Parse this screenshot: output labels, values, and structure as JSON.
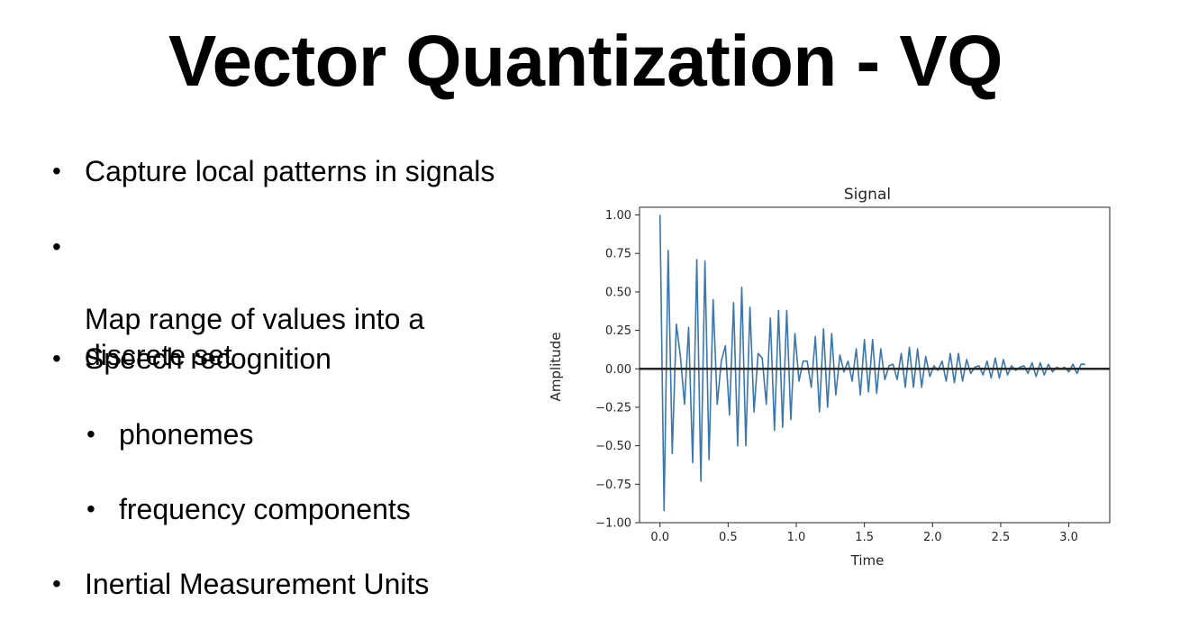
{
  "slide": {
    "title": "Vector Quantization - VQ",
    "bullets": [
      {
        "text": "Capture local patterns in signals",
        "level": 1
      },
      {
        "text": "Map range of values into a\ndiscrete set",
        "level": 1
      },
      {
        "text": "Speech recognition",
        "level": 1
      },
      {
        "text": "phonemes",
        "level": 2
      },
      {
        "text": "frequency components",
        "level": 2
      },
      {
        "text": "Inertial Measurement Units",
        "level": 1
      }
    ]
  },
  "chart_data": {
    "type": "line",
    "title": "Signal",
    "xlabel": "Time",
    "ylabel": "Amplitude",
    "xlim": [
      -0.15,
      3.3
    ],
    "ylim": [
      -1.0,
      1.05
    ],
    "xticks": [
      "0.0",
      "0.5",
      "1.0",
      "1.5",
      "2.0",
      "2.5",
      "3.0"
    ],
    "yticks": [
      "1.00",
      "0.75",
      "0.50",
      "0.25",
      "0.00",
      "−0.25",
      "−0.50",
      "−0.75",
      "−1.00"
    ],
    "grid": false,
    "line_color": "#3a76af",
    "zero_line_color": "#262626",
    "series": [
      {
        "x": [
          0.0,
          0.03,
          0.06,
          0.09,
          0.12,
          0.15,
          0.18,
          0.21,
          0.24,
          0.27,
          0.3,
          0.33,
          0.36,
          0.39,
          0.42,
          0.45,
          0.48,
          0.51,
          0.54,
          0.57,
          0.6,
          0.63,
          0.66,
          0.69,
          0.72,
          0.75,
          0.78,
          0.81,
          0.84,
          0.87,
          0.9,
          0.93,
          0.96,
          0.99,
          1.02,
          1.05,
          1.08,
          1.11,
          1.14,
          1.17,
          1.2,
          1.23,
          1.26,
          1.29,
          1.32,
          1.35,
          1.38,
          1.41,
          1.44,
          1.47,
          1.5,
          1.53,
          1.56,
          1.59,
          1.62,
          1.65,
          1.68,
          1.71,
          1.74,
          1.77,
          1.8,
          1.83,
          1.86,
          1.89,
          1.92,
          1.95,
          1.98,
          2.01,
          2.04,
          2.07,
          2.1,
          2.13,
          2.16,
          2.19,
          2.22,
          2.25,
          2.28,
          2.31,
          2.34,
          2.37,
          2.4,
          2.43,
          2.46,
          2.49,
          2.52,
          2.55,
          2.58,
          2.61,
          2.64,
          2.67,
          2.7,
          2.73,
          2.76,
          2.79,
          2.82,
          2.85,
          2.88,
          2.91,
          2.94,
          2.97,
          3.0,
          3.03,
          3.06,
          3.09,
          3.12
        ],
        "y": [
          1.0,
          -0.92,
          0.77,
          -0.55,
          0.29,
          0.08,
          -0.23,
          0.27,
          -0.61,
          0.71,
          -0.73,
          0.7,
          -0.59,
          0.45,
          -0.23,
          0.05,
          0.15,
          -0.3,
          0.43,
          -0.5,
          0.53,
          -0.5,
          0.4,
          -0.28,
          0.1,
          0.07,
          -0.23,
          0.33,
          -0.4,
          0.38,
          -0.38,
          0.38,
          -0.33,
          0.23,
          -0.08,
          0.05,
          0.05,
          -0.12,
          0.21,
          -0.28,
          0.26,
          -0.25,
          0.23,
          -0.17,
          0.09,
          -0.02,
          0.05,
          -0.08,
          0.13,
          -0.17,
          0.19,
          -0.15,
          0.19,
          -0.16,
          0.13,
          -0.07,
          0.02,
          0.03,
          -0.07,
          0.1,
          -0.12,
          0.14,
          -0.12,
          0.13,
          -0.12,
          0.08,
          -0.05,
          0.02,
          -0.01,
          0.05,
          -0.08,
          0.1,
          -0.09,
          0.1,
          -0.08,
          0.06,
          -0.03,
          0.01,
          0.02,
          -0.04,
          0.05,
          -0.06,
          0.07,
          -0.06,
          0.06,
          -0.04,
          0.02,
          -0.01,
          0.01,
          0.02,
          -0.03,
          0.04,
          -0.05,
          0.04,
          -0.04,
          0.03,
          -0.02,
          0.01,
          0.0,
          0.01,
          -0.02,
          0.03,
          -0.03,
          0.03,
          0.03
        ]
      }
    ]
  }
}
